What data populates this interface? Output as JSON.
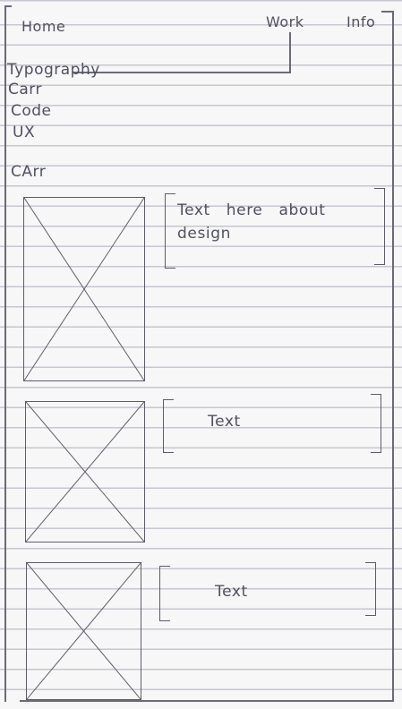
{
  "nav": {
    "home": "Home",
    "work": "Work",
    "info": "Info"
  },
  "work_menu": [
    "Typography",
    "Carr",
    "Code",
    "UX"
  ],
  "section_title": "CArr",
  "cards": [
    {
      "text": "Text here about design"
    },
    {
      "text": "Text"
    },
    {
      "text": "Text"
    }
  ]
}
